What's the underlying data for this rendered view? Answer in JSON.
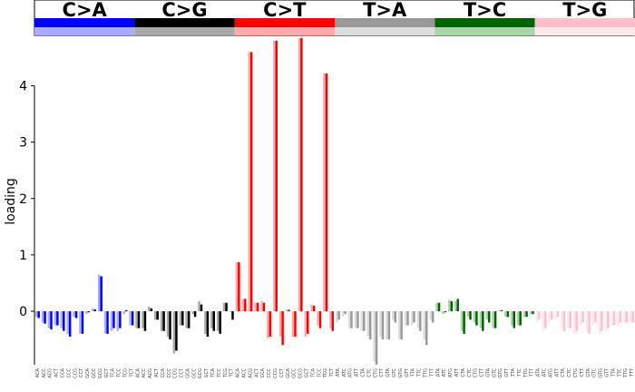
{
  "chart_data": {
    "type": "bar",
    "ylabel": "loading",
    "xlabel": "",
    "ylim": [
      -0.95,
      4.75
    ],
    "yticks": [
      0,
      1,
      2,
      3,
      4
    ],
    "grid": false,
    "legend": "none",
    "groups": [
      {
        "name": "C>A",
        "color": "#0000ff",
        "light": "#aaaaff"
      },
      {
        "name": "C>G",
        "color": "#000000",
        "light": "#aaaaaa"
      },
      {
        "name": "C>T",
        "color": "#ff0000",
        "light": "#ffaaaa"
      },
      {
        "name": "T>A",
        "color": "#999999",
        "light": "#dddddd"
      },
      {
        "name": "T>C",
        "color": "#006400",
        "light": "#aad4aa"
      },
      {
        "name": "T>G",
        "color": "#ffc0cb",
        "light": "#ffe8ec"
      }
    ],
    "context_labels": {
      "C>A": [
        "ACA",
        "ACC",
        "ACG",
        "ACT",
        "CCA",
        "CCC",
        "CCG",
        "CCT",
        "GCA",
        "GCC",
        "GCG",
        "GCT",
        "TCA",
        "TCC",
        "TCG",
        "TCT"
      ],
      "C>G": [
        "ACA",
        "ACC",
        "ACG",
        "ACT",
        "CCA",
        "CCC",
        "CCG",
        "CCT",
        "GCA",
        "GCC",
        "GCG",
        "GCT",
        "TCA",
        "TCC",
        "TCG",
        "TCT"
      ],
      "C>T": [
        "ACA",
        "ACC",
        "ACG",
        "ACT",
        "CCA",
        "CCC",
        "CCG",
        "CCT",
        "GCA",
        "GCC",
        "GCG",
        "GCT",
        "TCA",
        "TCC",
        "TCG",
        "TCT"
      ],
      "T>A": [
        "ATA",
        "ATC",
        "ATG",
        "ATT",
        "CTA",
        "CTC",
        "CTG",
        "CTT",
        "GTA",
        "GTC",
        "GTG",
        "GTT",
        "TTA",
        "TTC",
        "TTG",
        "TTT"
      ],
      "T>C": [
        "ATA",
        "ATC",
        "ATG",
        "ATT",
        "CTA",
        "CTC",
        "CTG",
        "CTT",
        "GTA",
        "GTC",
        "GTG",
        "GTT",
        "TTA",
        "TTC",
        "TTG",
        "TTT"
      ],
      "T>G": [
        "ATA",
        "ATC",
        "ATG",
        "ATT",
        "CTA",
        "CTC",
        "CTG",
        "CTT",
        "GTA",
        "GTC",
        "GTG",
        "GTT",
        "TTA",
        "TTC",
        "TTG",
        "TTT"
      ]
    },
    "series": [
      {
        "name": "",
        "shade": "light",
        "values": {
          "C>A": [
            -0.1,
            -0.2,
            -0.3,
            -0.25,
            -0.3,
            -0.4,
            -0.1,
            -0.4,
            -0.05,
            0.05,
            0.65,
            -0.4,
            -0.35,
            -0.35,
            -0.05,
            -0.25
          ],
          "C>G": [
            -0.3,
            -0.3,
            0.08,
            -0.15,
            -0.35,
            -0.45,
            -0.75,
            -0.25,
            -0.3,
            -0.05,
            0.18,
            -0.4,
            -0.3,
            -0.35,
            0.15,
            0.0
          ],
          "C>T": [
            0.87,
            0.22,
            4.6,
            0.15,
            0.18,
            -0.48,
            4.8,
            -0.45,
            0.03,
            -0.45,
            4.85,
            -0.45,
            0.12,
            -0.25,
            4.22,
            -0.3
          ],
          "T>A": [
            -0.2,
            -0.1,
            -0.3,
            -0.3,
            -0.35,
            -0.45,
            -0.9,
            -0.45,
            -0.5,
            -0.15,
            -0.5,
            -0.25,
            -0.25,
            -0.3,
            -0.5,
            -0.15
          ],
          "T>C": [
            0.15,
            -0.05,
            0.2,
            0.18,
            -0.35,
            -0.1,
            -0.2,
            -0.3,
            -0.15,
            -0.3,
            0.02,
            -0.1,
            -0.25,
            -0.25,
            -0.1,
            -0.05
          ],
          "T>G": [
            -0.2,
            -0.35,
            -0.2,
            -0.15,
            -0.3,
            -0.3,
            -0.4,
            -0.25,
            -0.35,
            -0.25,
            -0.4,
            -0.35,
            -0.25,
            -0.25,
            -0.2,
            -0.2
          ]
        }
      },
      {
        "name": "",
        "shade": "dark",
        "values": {
          "C>A": [
            -0.12,
            -0.22,
            -0.32,
            -0.25,
            -0.35,
            -0.45,
            -0.12,
            -0.4,
            -0.02,
            0.03,
            0.62,
            -0.4,
            -0.3,
            -0.3,
            0.02,
            -0.25
          ],
          "C>G": [
            -0.3,
            -0.35,
            0.05,
            -0.15,
            -0.35,
            -0.5,
            -0.7,
            -0.25,
            -0.3,
            -0.1,
            0.12,
            -0.45,
            -0.35,
            -0.4,
            0.15,
            -0.15
          ],
          "C>T": [
            0.87,
            0.22,
            4.6,
            0.15,
            0.15,
            -0.45,
            4.8,
            -0.6,
            0.03,
            -0.45,
            4.85,
            -0.4,
            0.1,
            -0.3,
            4.22,
            -0.35
          ],
          "T>A": [
            -0.15,
            -0.05,
            -0.3,
            -0.3,
            -0.35,
            -0.5,
            -0.95,
            -0.5,
            -0.5,
            -0.2,
            -0.5,
            -0.25,
            -0.2,
            -0.35,
            -0.6,
            -0.2
          ],
          "T>C": [
            0.15,
            -0.02,
            0.18,
            0.22,
            -0.4,
            -0.15,
            -0.25,
            -0.35,
            -0.2,
            -0.3,
            0.02,
            -0.1,
            -0.3,
            -0.25,
            -0.1,
            -0.05
          ],
          "T>G": [
            -0.15,
            -0.3,
            -0.15,
            -0.1,
            -0.35,
            -0.3,
            -0.35,
            -0.2,
            -0.4,
            -0.2,
            -0.35,
            -0.3,
            -0.25,
            -0.2,
            -0.2,
            -0.2
          ]
        }
      }
    ]
  }
}
